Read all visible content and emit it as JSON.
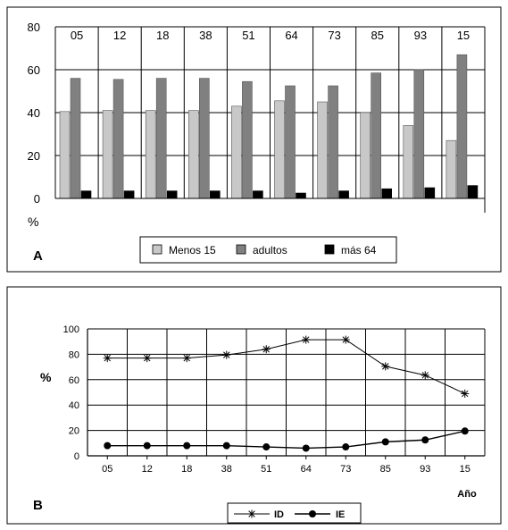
{
  "chart_data": [
    {
      "panel_label": "A",
      "type": "bar",
      "categories": [
        "05",
        "12",
        "18",
        "38",
        "51",
        "64",
        "73",
        "85",
        "93",
        "15"
      ],
      "series": [
        {
          "name": "Menos 15",
          "color": "#c8c8c8",
          "values": [
            40.5,
            41,
            41,
            41,
            43,
            45.5,
            45,
            40,
            34,
            27
          ]
        },
        {
          "name": "adultos",
          "color": "#808080",
          "values": [
            56,
            55.5,
            56,
            56,
            54.5,
            52.5,
            52.5,
            58.5,
            60,
            67
          ]
        },
        {
          "name": "más 64",
          "color": "#000000",
          "values": [
            3.5,
            3.5,
            3.5,
            3.5,
            3.5,
            2.5,
            3.5,
            4.5,
            5,
            6
          ]
        }
      ],
      "ylabel": "%",
      "ylim": [
        0,
        80
      ],
      "yticks": [
        "0",
        "20",
        "40",
        "60",
        "80"
      ],
      "category_labels_position": "top",
      "grid": true,
      "legend_position": "bottom"
    },
    {
      "panel_label": "B",
      "type": "line",
      "categories": [
        "05",
        "12",
        "18",
        "38",
        "51",
        "64",
        "73",
        "85",
        "93",
        "15"
      ],
      "series": [
        {
          "name": "ID",
          "marker": "asterisk",
          "values": [
            77,
            77,
            77,
            79.5,
            84,
            91.5,
            91.5,
            70.5,
            63.5,
            49
          ]
        },
        {
          "name": "IE",
          "marker": "circle",
          "values": [
            8,
            8,
            8,
            8,
            7,
            6,
            7,
            11,
            12.5,
            19.5
          ]
        }
      ],
      "ylabel": "%",
      "xlabel": "Año",
      "ylim": [
        0,
        100
      ],
      "yticks": [
        "0",
        "20",
        "40",
        "60",
        "80",
        "100"
      ],
      "grid": true,
      "legend_position": "bottom"
    }
  ]
}
